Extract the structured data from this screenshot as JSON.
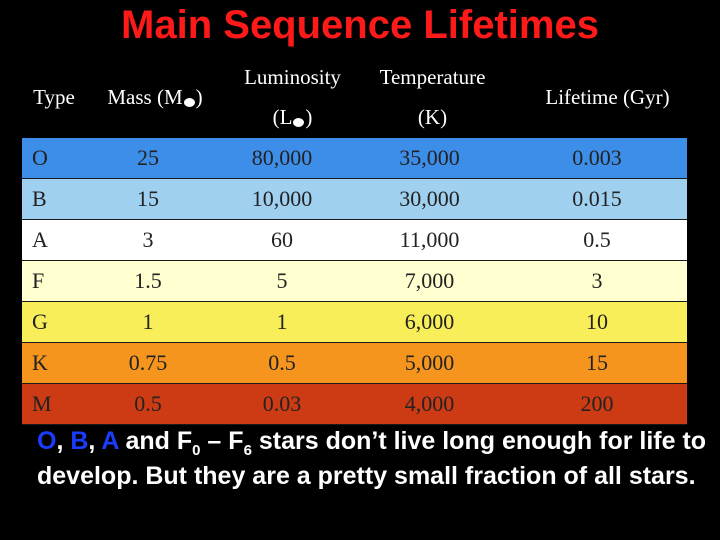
{
  "title": "Main Sequence Lifetimes",
  "headers": {
    "type": "Type",
    "mass_prefix": "Mass (M",
    "mass_suffix": ")",
    "lum_line1": "Luminosity",
    "lum_prefix": "(L",
    "lum_suffix": ")",
    "temp_line1": "Temperature",
    "temp_line2": "(K)",
    "lifetime": "Lifetime (Gyr)"
  },
  "rows": [
    {
      "type": "O",
      "mass": "25",
      "luminosity": "80,000",
      "temperature": "35,000",
      "lifetime": "0.003",
      "color": "#3d8ee9"
    },
    {
      "type": "B",
      "mass": "15",
      "luminosity": "10,000",
      "temperature": "30,000",
      "lifetime": "0.015",
      "color": "#9fd0f0"
    },
    {
      "type": "A",
      "mass": "3",
      "luminosity": "60",
      "temperature": "11,000",
      "lifetime": "0.5",
      "color": "#ffffff"
    },
    {
      "type": "F",
      "mass": "1.5",
      "luminosity": "5",
      "temperature": "7,000",
      "lifetime": "3",
      "color": "#ffffd0"
    },
    {
      "type": "G",
      "mass": "1",
      "luminosity": "1",
      "temperature": "6,000",
      "lifetime": "10",
      "color": "#f7ee5a"
    },
    {
      "type": "K",
      "mass": "0.75",
      "luminosity": "0.5",
      "temperature": "5,000",
      "lifetime": "15",
      "color": "#f5951e"
    },
    {
      "type": "M",
      "mass": "0.5",
      "luminosity": "0.03",
      "temperature": "4,000",
      "lifetime": "200",
      "color": "#cc3b14"
    }
  ],
  "note": {
    "o": "O",
    "comma1": ", ",
    "b": "B",
    "comma2": ", ",
    "a": "A",
    "and_f": " and F",
    "sub0": "0",
    "dash_f": " – F",
    "sub6": "6",
    "rest": " stars don’t live long enough for life to develop.  But they are a pretty small fraction of all stars."
  }
}
